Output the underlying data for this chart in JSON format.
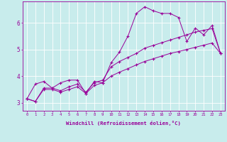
{
  "title": "",
  "xlabel": "Windchill (Refroidissement éolien,°C)",
  "ylabel": "",
  "bg_color": "#c8ecec",
  "line_color": "#990099",
  "grid_color": "#ffffff",
  "xlim": [
    -0.5,
    23.5
  ],
  "ylim": [
    2.7,
    6.8
  ],
  "xticks": [
    0,
    1,
    2,
    3,
    4,
    5,
    6,
    7,
    8,
    9,
    10,
    11,
    12,
    13,
    14,
    15,
    16,
    17,
    18,
    19,
    20,
    21,
    22,
    23
  ],
  "yticks": [
    3,
    4,
    5,
    6
  ],
  "series1_x": [
    0,
    1,
    2,
    3,
    4,
    5,
    6,
    7,
    8,
    9,
    10,
    11,
    12,
    13,
    14,
    15,
    16,
    17,
    18,
    19,
    20,
    21,
    22,
    23
  ],
  "series1_y": [
    3.15,
    3.7,
    3.8,
    3.55,
    3.75,
    3.85,
    3.85,
    3.35,
    3.8,
    3.75,
    4.5,
    4.9,
    5.5,
    6.35,
    6.6,
    6.45,
    6.35,
    6.35,
    6.2,
    5.3,
    5.8,
    5.55,
    5.9,
    4.85
  ],
  "series2_x": [
    0,
    1,
    2,
    3,
    4,
    5,
    6,
    7,
    8,
    9,
    10,
    11,
    12,
    13,
    14,
    15,
    16,
    17,
    18,
    19,
    20,
    21,
    22,
    23
  ],
  "series2_y": [
    3.15,
    3.05,
    3.55,
    3.55,
    3.45,
    3.6,
    3.7,
    3.4,
    3.75,
    3.85,
    4.35,
    4.55,
    4.7,
    4.85,
    5.05,
    5.15,
    5.25,
    5.35,
    5.45,
    5.55,
    5.65,
    5.72,
    5.78,
    4.85
  ],
  "series3_x": [
    0,
    1,
    2,
    3,
    4,
    5,
    6,
    7,
    8,
    9,
    10,
    11,
    12,
    13,
    14,
    15,
    16,
    17,
    18,
    19,
    20,
    21,
    22,
    23
  ],
  "series3_y": [
    3.15,
    3.05,
    3.5,
    3.5,
    3.4,
    3.5,
    3.6,
    3.35,
    3.65,
    3.75,
    4.0,
    4.15,
    4.28,
    4.42,
    4.55,
    4.65,
    4.75,
    4.85,
    4.92,
    5.0,
    5.08,
    5.16,
    5.24,
    4.85
  ]
}
